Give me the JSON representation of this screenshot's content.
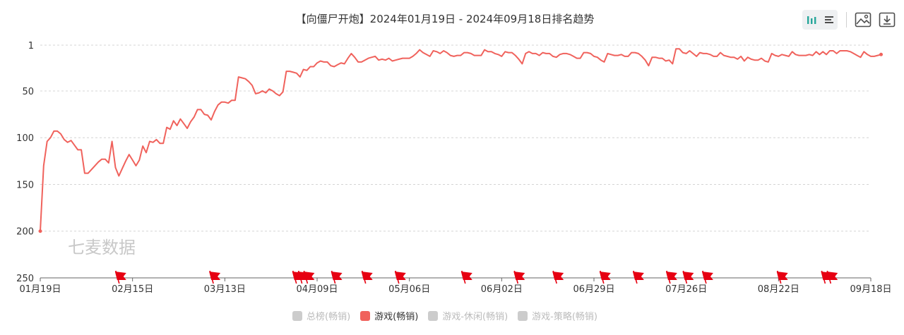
{
  "title": "【向僵尸开炮】2024年01月19日 - 2024年09月18日排名趋势",
  "watermark": "七麦数据",
  "colors": {
    "line": "#f0625c",
    "flag": "#e60012",
    "grid": "#d4d4d4",
    "axis": "#666666",
    "inactive": "#cccccc",
    "toolbar_icon": "#4d4d4d",
    "toolbar_active": "#26a69a"
  },
  "toolbar": {
    "icons": [
      "bar-chart-icon",
      "list-icon",
      "image-icon",
      "download-icon"
    ]
  },
  "legend": [
    {
      "label": "总榜(畅销)",
      "active": false
    },
    {
      "label": "游戏(畅销)",
      "active": true
    },
    {
      "label": "游戏-休闲(畅销)",
      "active": false
    },
    {
      "label": "游戏-策略(畅销)",
      "active": false
    }
  ],
  "chart_data": {
    "type": "line",
    "title": "【向僵尸开炮】2024年01月19日 - 2024年09月18日排名趋势",
    "x_tick_labels": [
      "01月19日",
      "02月15日",
      "03月13日",
      "04月09日",
      "05月06日",
      "06月02日",
      "06月29日",
      "07月26日",
      "08月22日",
      "09月18日"
    ],
    "y_tick_labels": [
      "1",
      "50",
      "100",
      "150",
      "200",
      "250"
    ],
    "y_ticks": [
      1,
      50,
      100,
      150,
      200,
      250
    ],
    "ylim": [
      1,
      250
    ],
    "y_inverted": true,
    "x_range_days": [
      0,
      243
    ],
    "grid": true,
    "legend_position": "bottom",
    "series": [
      {
        "name": "游戏(畅销)",
        "points": [
          [
            0,
            200
          ],
          [
            1,
            130
          ],
          [
            2,
            104
          ],
          [
            3,
            100
          ],
          [
            4,
            93
          ],
          [
            5,
            93
          ],
          [
            6,
            96
          ],
          [
            7,
            102
          ],
          [
            8,
            105
          ],
          [
            9,
            103
          ],
          [
            10,
            108
          ],
          [
            11,
            113
          ],
          [
            12,
            113
          ],
          [
            13,
            138
          ],
          [
            14,
            138
          ],
          [
            15,
            134
          ],
          [
            17,
            126
          ],
          [
            18,
            123
          ],
          [
            19,
            123
          ],
          [
            20,
            127
          ],
          [
            21,
            104
          ],
          [
            22,
            132
          ],
          [
            23,
            141
          ],
          [
            24,
            133
          ],
          [
            25,
            125
          ],
          [
            26,
            118
          ],
          [
            27,
            124
          ],
          [
            28,
            130
          ],
          [
            29,
            124
          ],
          [
            30,
            109
          ],
          [
            31,
            116
          ],
          [
            32,
            104
          ],
          [
            33,
            105
          ],
          [
            34,
            102
          ],
          [
            35,
            106
          ],
          [
            36,
            106
          ],
          [
            37,
            89
          ],
          [
            38,
            91
          ],
          [
            39,
            82
          ],
          [
            40,
            87
          ],
          [
            41,
            80
          ],
          [
            42,
            85
          ],
          [
            43,
            90
          ],
          [
            44,
            83
          ],
          [
            45,
            78
          ],
          [
            46,
            70
          ],
          [
            47,
            70
          ],
          [
            48,
            75
          ],
          [
            49,
            76
          ],
          [
            50,
            81
          ],
          [
            51,
            72
          ],
          [
            52,
            65
          ],
          [
            53,
            62
          ],
          [
            54,
            62
          ],
          [
            55,
            63
          ],
          [
            56,
            60
          ],
          [
            57,
            60
          ],
          [
            58,
            35
          ],
          [
            59,
            36
          ],
          [
            60,
            37
          ],
          [
            61,
            40
          ],
          [
            62,
            44
          ],
          [
            63,
            53
          ],
          [
            64,
            52
          ],
          [
            65,
            50
          ],
          [
            66,
            52
          ],
          [
            67,
            48
          ],
          [
            68,
            50
          ],
          [
            69,
            53
          ],
          [
            70,
            55
          ],
          [
            71,
            51
          ],
          [
            72,
            29
          ],
          [
            73,
            29
          ],
          [
            74,
            30
          ],
          [
            75,
            31
          ],
          [
            76,
            35
          ],
          [
            77,
            27
          ],
          [
            78,
            28
          ],
          [
            79,
            24
          ],
          [
            80,
            24
          ],
          [
            81,
            20
          ],
          [
            82,
            18
          ],
          [
            83,
            19
          ],
          [
            84,
            19
          ],
          [
            85,
            23
          ],
          [
            86,
            24
          ],
          [
            87,
            22
          ],
          [
            88,
            20
          ],
          [
            89,
            21
          ],
          [
            90,
            15
          ],
          [
            91,
            10
          ],
          [
            92,
            14
          ],
          [
            93,
            19
          ],
          [
            94,
            19
          ],
          [
            95,
            17
          ],
          [
            96,
            15
          ],
          [
            97,
            14
          ],
          [
            98,
            13
          ],
          [
            99,
            17
          ],
          [
            100,
            16
          ],
          [
            101,
            17
          ],
          [
            102,
            15
          ],
          [
            103,
            18
          ],
          [
            104,
            17
          ],
          [
            105,
            16
          ],
          [
            106,
            15
          ],
          [
            107,
            15
          ],
          [
            108,
            15
          ],
          [
            109,
            13
          ],
          [
            110,
            10
          ],
          [
            111,
            6
          ],
          [
            112,
            9
          ],
          [
            113,
            11
          ],
          [
            114,
            13
          ],
          [
            115,
            7
          ],
          [
            116,
            8
          ],
          [
            117,
            10
          ],
          [
            118,
            7
          ],
          [
            119,
            9
          ],
          [
            120,
            12
          ],
          [
            121,
            13
          ],
          [
            122,
            12
          ],
          [
            123,
            12
          ],
          [
            124,
            9
          ],
          [
            125,
            9
          ],
          [
            126,
            10
          ],
          [
            127,
            12
          ],
          [
            128,
            12
          ],
          [
            129,
            12
          ],
          [
            130,
            6
          ],
          [
            131,
            8
          ],
          [
            132,
            8
          ],
          [
            133,
            10
          ],
          [
            134,
            11
          ],
          [
            135,
            13
          ],
          [
            136,
            8
          ],
          [
            137,
            9
          ],
          [
            138,
            9
          ],
          [
            139,
            12
          ],
          [
            140,
            16
          ],
          [
            141,
            21
          ],
          [
            142,
            10
          ],
          [
            143,
            8
          ],
          [
            144,
            10
          ],
          [
            145,
            10
          ],
          [
            146,
            12
          ],
          [
            147,
            9
          ],
          [
            148,
            10
          ],
          [
            149,
            10
          ],
          [
            150,
            13
          ],
          [
            151,
            14
          ],
          [
            152,
            11
          ],
          [
            153,
            10
          ],
          [
            154,
            10
          ],
          [
            155,
            11
          ],
          [
            156,
            13
          ],
          [
            157,
            15
          ],
          [
            158,
            15
          ],
          [
            159,
            9
          ],
          [
            160,
            9
          ],
          [
            161,
            10
          ],
          [
            162,
            13
          ],
          [
            163,
            14
          ],
          [
            164,
            17
          ],
          [
            165,
            19
          ],
          [
            166,
            10
          ],
          [
            167,
            11
          ],
          [
            168,
            12
          ],
          [
            169,
            12
          ],
          [
            170,
            11
          ],
          [
            171,
            13
          ],
          [
            172,
            13
          ],
          [
            173,
            9
          ],
          [
            174,
            9
          ],
          [
            175,
            10
          ],
          [
            176,
            13
          ],
          [
            177,
            17
          ],
          [
            178,
            23
          ],
          [
            179,
            14
          ],
          [
            180,
            14
          ],
          [
            181,
            15
          ],
          [
            182,
            15
          ],
          [
            183,
            18
          ],
          [
            184,
            17
          ],
          [
            185,
            21
          ],
          [
            186,
            5
          ],
          [
            187,
            5
          ],
          [
            188,
            9
          ],
          [
            189,
            10
          ],
          [
            190,
            7
          ],
          [
            191,
            10
          ],
          [
            192,
            13
          ],
          [
            193,
            9
          ],
          [
            194,
            10
          ],
          [
            195,
            10
          ],
          [
            196,
            11
          ],
          [
            197,
            13
          ],
          [
            198,
            13
          ],
          [
            199,
            9
          ],
          [
            200,
            12
          ],
          [
            201,
            13
          ],
          [
            202,
            14
          ],
          [
            203,
            14
          ],
          [
            204,
            16
          ],
          [
            205,
            13
          ],
          [
            206,
            18
          ],
          [
            207,
            14
          ],
          [
            208,
            16
          ],
          [
            209,
            17
          ],
          [
            210,
            17
          ],
          [
            211,
            15
          ],
          [
            212,
            18
          ],
          [
            213,
            19
          ],
          [
            214,
            10
          ],
          [
            215,
            12
          ],
          [
            216,
            13
          ],
          [
            217,
            11
          ],
          [
            218,
            12
          ],
          [
            219,
            13
          ],
          [
            220,
            8
          ],
          [
            221,
            11
          ],
          [
            222,
            12
          ],
          [
            223,
            12
          ],
          [
            224,
            12
          ],
          [
            225,
            11
          ],
          [
            226,
            12
          ],
          [
            227,
            8
          ],
          [
            228,
            11
          ],
          [
            229,
            8
          ],
          [
            230,
            11
          ],
          [
            231,
            7
          ],
          [
            232,
            7
          ],
          [
            233,
            10
          ],
          [
            234,
            7
          ],
          [
            235,
            7
          ],
          [
            236,
            7
          ],
          [
            237,
            8
          ],
          [
            238,
            10
          ],
          [
            239,
            12
          ],
          [
            240,
            14
          ],
          [
            241,
            8
          ],
          [
            242,
            11
          ],
          [
            243,
            13
          ],
          [
            244,
            13
          ],
          [
            245,
            12
          ],
          [
            246,
            11
          ]
        ]
      }
    ],
    "event_flags_day": [
      27,
      61,
      91,
      93,
      95,
      105,
      116,
      128,
      152,
      171,
      185,
      202,
      214,
      226,
      232,
      239,
      266,
      282,
      284
    ]
  }
}
